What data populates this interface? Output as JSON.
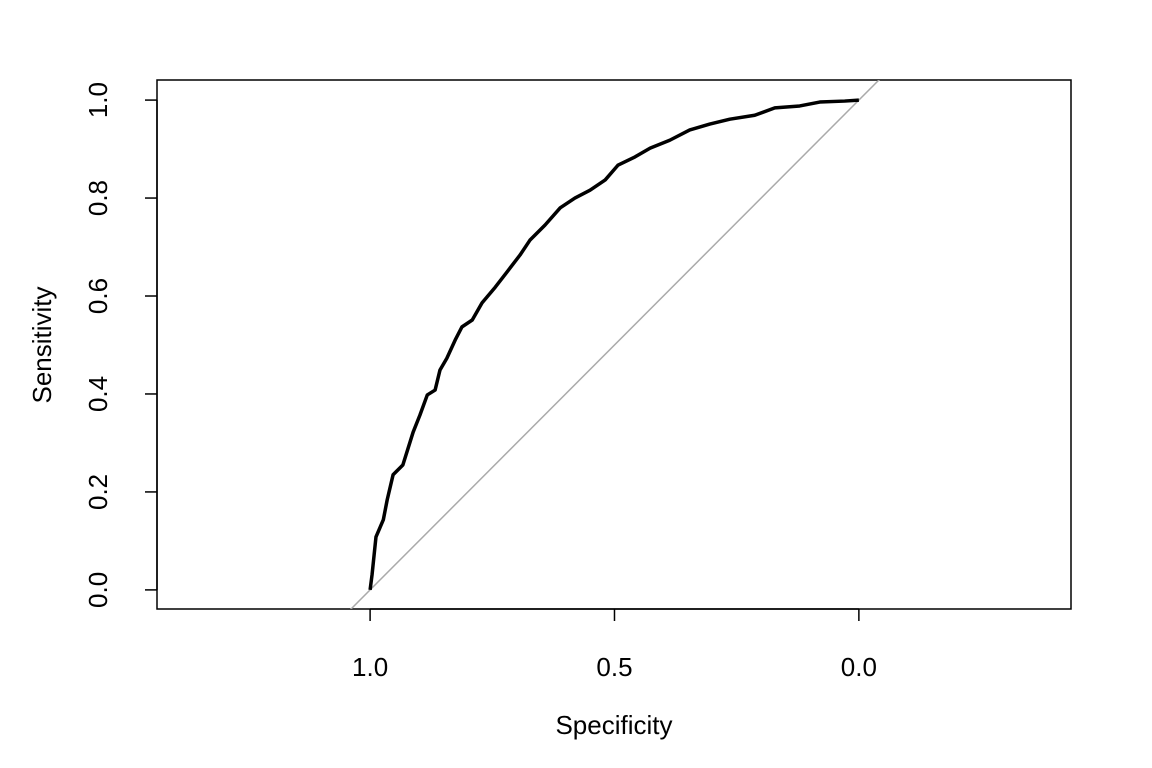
{
  "chart_data": {
    "type": "line",
    "xlabel": "Specificity",
    "ylabel": "Sensitivity",
    "x": [
      1.0,
      0.996,
      0.988,
      0.973,
      0.965,
      0.953,
      0.933,
      0.912,
      0.898,
      0.883,
      0.867,
      0.857,
      0.843,
      0.826,
      0.812,
      0.791,
      0.771,
      0.744,
      0.72,
      0.693,
      0.673,
      0.642,
      0.611,
      0.581,
      0.55,
      0.519,
      0.493,
      0.458,
      0.427,
      0.387,
      0.346,
      0.305,
      0.264,
      0.213,
      0.172,
      0.121,
      0.08,
      0.029,
      0.0
    ],
    "values": [
      0.0,
      0.031,
      0.108,
      0.143,
      0.184,
      0.235,
      0.255,
      0.322,
      0.357,
      0.398,
      0.408,
      0.449,
      0.473,
      0.51,
      0.537,
      0.551,
      0.586,
      0.618,
      0.649,
      0.684,
      0.714,
      0.745,
      0.78,
      0.8,
      0.816,
      0.837,
      0.867,
      0.884,
      0.902,
      0.918,
      0.939,
      0.951,
      0.961,
      0.969,
      0.984,
      0.988,
      0.996,
      0.998,
      1.0
    ],
    "color": "#000000",
    "xlim": [
      1.436,
      -0.434
    ],
    "ylim": [
      -0.039,
      1.041
    ],
    "xticks": [
      {
        "value": 1.0,
        "label": "1.0"
      },
      {
        "value": 0.5,
        "label": "0.5"
      },
      {
        "value": 0,
        "label": "0.0"
      }
    ],
    "yticks": [
      {
        "value": 0,
        "label": "0.0"
      },
      {
        "value": 0.2,
        "label": "0.2"
      },
      {
        "value": 0.4,
        "label": "0.4"
      },
      {
        "value": 0.6,
        "label": "0.6"
      },
      {
        "value": 0.8,
        "label": "0.8"
      },
      {
        "value": 1.0,
        "label": "1.0"
      }
    ]
  }
}
